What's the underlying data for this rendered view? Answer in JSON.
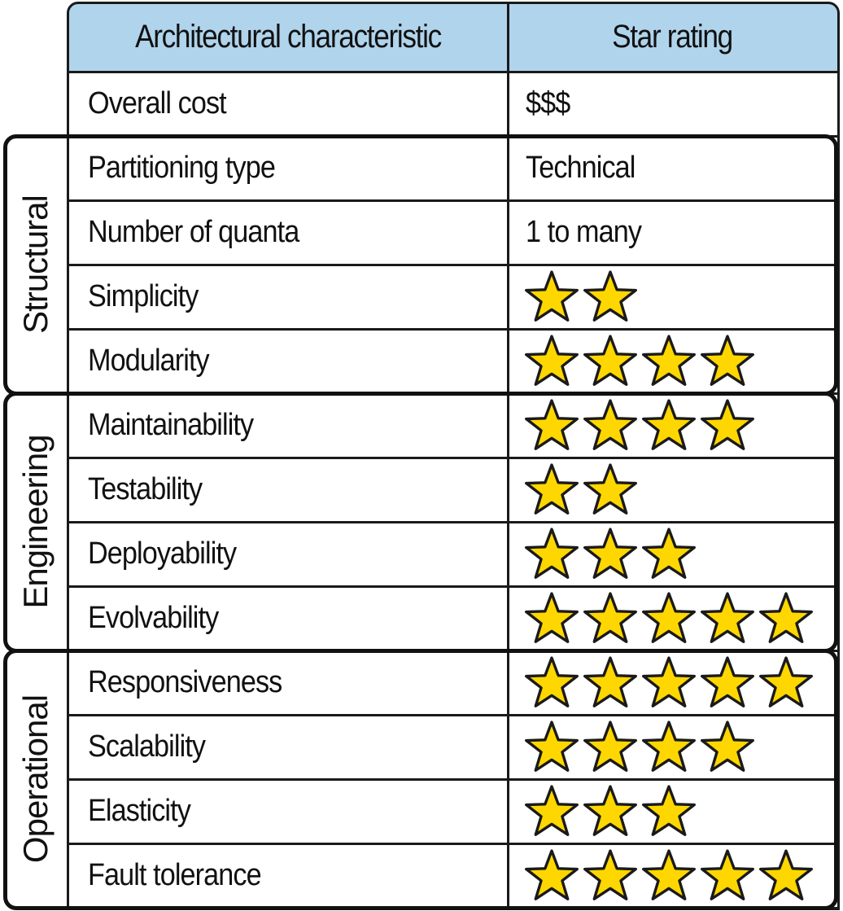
{
  "table": {
    "headers": {
      "characteristic": "Architectural characteristic",
      "rating": "Star rating"
    },
    "rows": [
      {
        "label": "Overall cost",
        "value": "$$$"
      },
      {
        "label": "Partitioning type",
        "value": "Technical"
      },
      {
        "label": "Number of quanta",
        "value": "1 to many"
      },
      {
        "label": "Simplicity",
        "stars": 2
      },
      {
        "label": "Modularity",
        "stars": 4
      },
      {
        "label": "Maintainability",
        "stars": 4
      },
      {
        "label": "Testability",
        "stars": 2
      },
      {
        "label": "Deployability",
        "stars": 3
      },
      {
        "label": "Evolvability",
        "stars": 5
      },
      {
        "label": "Responsiveness",
        "stars": 5
      },
      {
        "label": "Scalability",
        "stars": 4
      },
      {
        "label": "Elasticity",
        "stars": 3
      },
      {
        "label": "Fault tolerance",
        "stars": 5
      }
    ],
    "groups": [
      {
        "label": "Structural",
        "first_row": 1,
        "last_row": 4
      },
      {
        "label": "Engineering",
        "first_row": 5,
        "last_row": 8
      },
      {
        "label": "Operational",
        "first_row": 9,
        "last_row": 12
      }
    ]
  },
  "colors": {
    "header_fill": "#b0d4ec",
    "star_fill": "#ffd700",
    "border": "#1a1a1a"
  },
  "icons": {
    "rating": "star-icon"
  }
}
